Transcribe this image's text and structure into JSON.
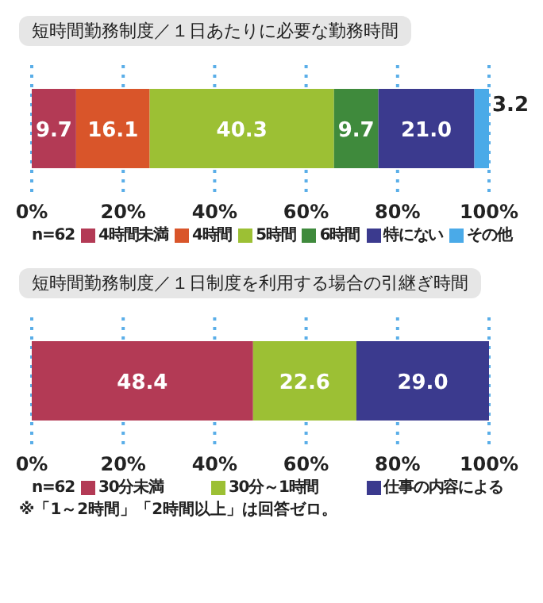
{
  "chart_data": [
    {
      "type": "bar",
      "orientation": "horizontal",
      "stacked": true,
      "title": "短時間勤務制度／１日あたりに必要な勤務時間",
      "categories": [
        null
      ],
      "series": [
        {
          "name": "4時間未満",
          "color": "#b33a55",
          "values": [
            9.7
          ],
          "value_labels": [
            "9.7"
          ]
        },
        {
          "name": "4時間",
          "color": "#d9552a",
          "values": [
            16.1
          ],
          "value_labels": [
            "16.1"
          ]
        },
        {
          "name": "5時間",
          "color": "#9cc034",
          "values": [
            40.3
          ],
          "value_labels": [
            "40.3"
          ]
        },
        {
          "name": "6時間",
          "color": "#3f8a3c",
          "values": [
            9.7
          ],
          "value_labels": [
            "9.7"
          ]
        },
        {
          "name": "特にない",
          "color": "#3b3a8e",
          "values": [
            21.0
          ],
          "value_labels": [
            "21.0"
          ]
        },
        {
          "name": "その他",
          "color": "#4aaae8",
          "values": [
            3.2
          ],
          "value_labels": [
            "3.2"
          ]
        }
      ],
      "xlim": [
        0,
        100
      ],
      "xticks": [
        {
          "value": 0,
          "label": "0%"
        },
        {
          "value": 20,
          "label": "20%"
        },
        {
          "value": 40,
          "label": "40%"
        },
        {
          "value": 60,
          "label": "60%"
        },
        {
          "value": 80,
          "label": "80%"
        },
        {
          "value": 100,
          "label": "100%"
        }
      ],
      "tick_labels": "x",
      "grid": "x",
      "legend": "bottom",
      "annotations": [
        "n=62"
      ]
    },
    {
      "type": "bar",
      "orientation": "horizontal",
      "stacked": true,
      "title": "短時間勤務制度／１日制度を利用する場合の引継ぎ時間",
      "categories": [
        null
      ],
      "series": [
        {
          "name": "30分未満",
          "color": "#b33a55",
          "values": [
            48.4
          ],
          "value_labels": [
            "48.4"
          ]
        },
        {
          "name": "30分～1時間",
          "color": "#9cc034",
          "values": [
            22.6
          ],
          "value_labels": [
            "22.6"
          ]
        },
        {
          "name": "仕事の内容による",
          "color": "#3b3a8e",
          "values": [
            29.0
          ],
          "value_labels": [
            "29.0"
          ]
        }
      ],
      "xlim": [
        0,
        100
      ],
      "xticks": [
        {
          "value": 0,
          "label": "0%"
        },
        {
          "value": 20,
          "label": "20%"
        },
        {
          "value": 40,
          "label": "40%"
        },
        {
          "value": 60,
          "label": "60%"
        },
        {
          "value": 80,
          "label": "80%"
        },
        {
          "value": 100,
          "label": "100%"
        }
      ],
      "tick_labels": "x",
      "grid": "x",
      "legend": "bottom",
      "annotations": [
        "n=62",
        "※「1～2時間」「2時間以上」は回答ゼロ。"
      ]
    }
  ]
}
